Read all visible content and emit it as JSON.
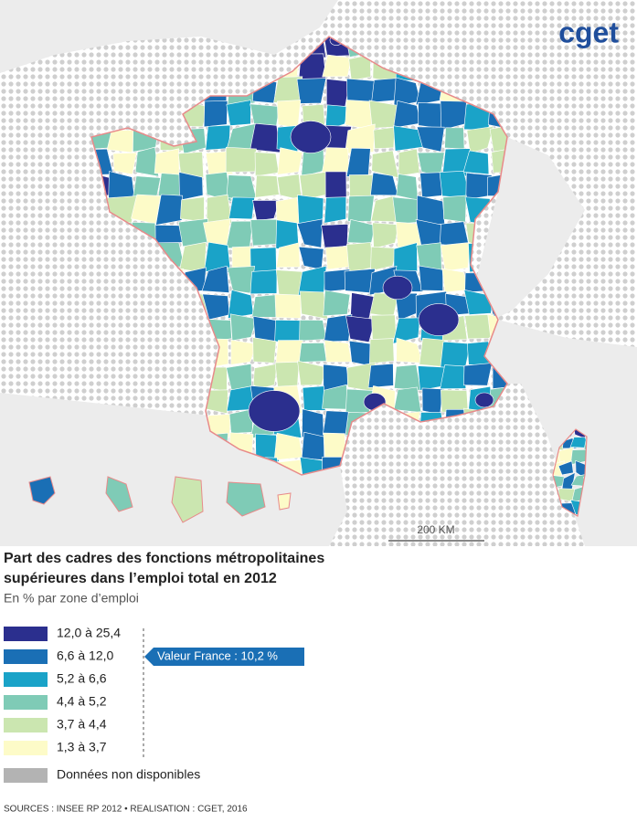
{
  "logo": "cget",
  "scale_label": "200 KM",
  "title_lines": [
    "Part des cadres des fonctions métropolitaines",
    "supérieures dans l’emploi total en 2012"
  ],
  "subtitle": "En % par zone d’emploi",
  "legend": {
    "items": [
      {
        "label": "12,0 à 25,4",
        "color": "#2b2f8e"
      },
      {
        "label": "6,6 à 12,0",
        "color": "#1a6fb5"
      },
      {
        "label": "5,2 à 6,6",
        "color": "#1aa3c8"
      },
      {
        "label": "4,4 à 5,2",
        "color": "#7fcbb6"
      },
      {
        "label": "3,7 à 4,4",
        "color": "#cbe6b0"
      },
      {
        "label": "1,3 à 3,7",
        "color": "#fdfbc8"
      }
    ],
    "no_data": {
      "label": "Données non disponibles",
      "color": "#b3b3b3"
    }
  },
  "callout": "Valeur France : 10,2 %",
  "sources": "SOURCES : INSEE RP 2012 • REALISATION : CGET, 2016"
}
